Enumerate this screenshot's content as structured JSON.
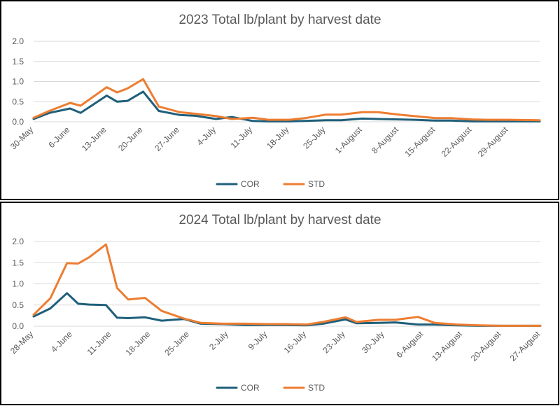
{
  "chart_data": [
    {
      "type": "line",
      "title": "2023 Total lb/plant by harvest date",
      "xlabel": "",
      "ylabel": "",
      "ylim": [
        0,
        2.0
      ],
      "yticks": [
        "0.0",
        "0.5",
        "1.0",
        "1.5",
        "2.0"
      ],
      "x_tick_labels": [
        "30-May",
        "6-June",
        "13-June",
        "20-June",
        "27-June",
        "4-July",
        "11-July",
        "18-July",
        "25-July",
        "1-August",
        "8-August",
        "15-August",
        "22-August",
        "29-August"
      ],
      "x_start": "2023-05-30",
      "x_end": "2023-09-04",
      "grid": true,
      "legend_position": "bottom",
      "series": [
        {
          "name": "COR",
          "color": "#1f5f7a",
          "dates": [
            "2023-05-30",
            "2023-06-02",
            "2023-06-06",
            "2023-06-08",
            "2023-06-13",
            "2023-06-15",
            "2023-06-17",
            "2023-06-20",
            "2023-06-23",
            "2023-06-27",
            "2023-06-30",
            "2023-07-04",
            "2023-07-07",
            "2023-07-11",
            "2023-07-14",
            "2023-07-18",
            "2023-07-21",
            "2023-07-25",
            "2023-07-28",
            "2023-08-01",
            "2023-08-04",
            "2023-08-08",
            "2023-08-11",
            "2023-08-15",
            "2023-08-18",
            "2023-08-22",
            "2023-08-25",
            "2023-08-29",
            "2023-09-04"
          ],
          "values": [
            0.07,
            0.22,
            0.33,
            0.22,
            0.65,
            0.5,
            0.52,
            0.75,
            0.27,
            0.17,
            0.15,
            0.07,
            0.12,
            0.02,
            0.01,
            0.01,
            0.02,
            0.04,
            0.04,
            0.08,
            0.07,
            0.06,
            0.05,
            0.03,
            0.03,
            0.01,
            0.01,
            0.01,
            0.01
          ]
        },
        {
          "name": "STD",
          "color": "#ed7d31",
          "dates": [
            "2023-05-30",
            "2023-06-02",
            "2023-06-06",
            "2023-06-08",
            "2023-06-13",
            "2023-06-15",
            "2023-06-17",
            "2023-06-20",
            "2023-06-23",
            "2023-06-27",
            "2023-06-30",
            "2023-07-04",
            "2023-07-07",
            "2023-07-11",
            "2023-07-14",
            "2023-07-18",
            "2023-07-21",
            "2023-07-25",
            "2023-07-28",
            "2023-08-01",
            "2023-08-04",
            "2023-08-08",
            "2023-08-11",
            "2023-08-15",
            "2023-08-18",
            "2023-08-22",
            "2023-08-25",
            "2023-08-29",
            "2023-09-04"
          ],
          "values": [
            0.1,
            0.27,
            0.47,
            0.4,
            0.86,
            0.73,
            0.83,
            1.06,
            0.38,
            0.24,
            0.2,
            0.14,
            0.07,
            0.1,
            0.05,
            0.05,
            0.09,
            0.18,
            0.18,
            0.24,
            0.24,
            0.18,
            0.14,
            0.09,
            0.09,
            0.06,
            0.05,
            0.05,
            0.04
          ]
        }
      ]
    },
    {
      "type": "line",
      "title": "2024 Total lb/plant by harvest date",
      "xlabel": "",
      "ylabel": "",
      "ylim": [
        0,
        2.0
      ],
      "yticks": [
        "0.0",
        "0.5",
        "1.0",
        "1.5",
        "2.0"
      ],
      "x_tick_labels": [
        "28-May",
        "4-June",
        "11-June",
        "18-June",
        "25-June",
        "2-July",
        "9-July",
        "16-July",
        "23-July",
        "30-July",
        "6-August",
        "13-August",
        "20-August",
        "27-August"
      ],
      "x_start": "2024-05-28",
      "x_end": "2024-08-27",
      "grid": true,
      "legend_position": "bottom",
      "series": [
        {
          "name": "COR",
          "color": "#1f5f7a",
          "dates": [
            "2024-05-28",
            "2024-05-31",
            "2024-06-03",
            "2024-06-05",
            "2024-06-07",
            "2024-06-10",
            "2024-06-12",
            "2024-06-14",
            "2024-06-17",
            "2024-06-20",
            "2024-06-24",
            "2024-06-27",
            "2024-07-01",
            "2024-07-05",
            "2024-07-09",
            "2024-07-12",
            "2024-07-16",
            "2024-07-19",
            "2024-07-23",
            "2024-07-25",
            "2024-07-29",
            "2024-08-01",
            "2024-08-05",
            "2024-08-08",
            "2024-08-12",
            "2024-08-16",
            "2024-08-20",
            "2024-08-23",
            "2024-08-27"
          ],
          "values": [
            0.23,
            0.42,
            0.78,
            0.53,
            0.51,
            0.5,
            0.2,
            0.19,
            0.21,
            0.13,
            0.17,
            0.06,
            0.05,
            0.03,
            0.03,
            0.03,
            0.02,
            0.06,
            0.16,
            0.07,
            0.08,
            0.09,
            0.04,
            0.04,
            0.02,
            0.01,
            0.01,
            0.01,
            0.01
          ]
        },
        {
          "name": "STD",
          "color": "#ed7d31",
          "dates": [
            "2024-05-28",
            "2024-05-31",
            "2024-06-03",
            "2024-06-05",
            "2024-06-07",
            "2024-06-10",
            "2024-06-12",
            "2024-06-14",
            "2024-06-17",
            "2024-06-20",
            "2024-06-24",
            "2024-06-27",
            "2024-07-01",
            "2024-07-05",
            "2024-07-09",
            "2024-07-12",
            "2024-07-16",
            "2024-07-19",
            "2024-07-23",
            "2024-07-25",
            "2024-07-29",
            "2024-08-01",
            "2024-08-05",
            "2024-08-08",
            "2024-08-12",
            "2024-08-16",
            "2024-08-20",
            "2024-08-23",
            "2024-08-27"
          ],
          "values": [
            0.27,
            0.66,
            1.49,
            1.48,
            1.63,
            1.93,
            0.9,
            0.63,
            0.67,
            0.36,
            0.18,
            0.08,
            0.06,
            0.06,
            0.05,
            0.05,
            0.04,
            0.1,
            0.21,
            0.1,
            0.15,
            0.15,
            0.22,
            0.08,
            0.04,
            0.02,
            0.01,
            0.01,
            0.01
          ]
        }
      ]
    }
  ]
}
